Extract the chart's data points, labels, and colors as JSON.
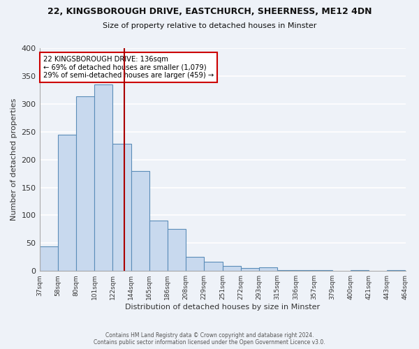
{
  "title_line1": "22, KINGSBOROUGH DRIVE, EASTCHURCH, SHEERNESS, ME12 4DN",
  "title_line2": "Size of property relative to detached houses in Minster",
  "xlabel": "Distribution of detached houses by size in Minster",
  "ylabel": "Number of detached properties",
  "bar_labels": [
    "37sqm",
    "58sqm",
    "80sqm",
    "101sqm",
    "122sqm",
    "144sqm",
    "165sqm",
    "186sqm",
    "208sqm",
    "229sqm",
    "251sqm",
    "272sqm",
    "293sqm",
    "315sqm",
    "336sqm",
    "357sqm",
    "379sqm",
    "400sqm",
    "421sqm",
    "443sqm",
    "464sqm"
  ],
  "bar_values": [
    44,
    245,
    313,
    335,
    228,
    180,
    90,
    75,
    25,
    17,
    9,
    5,
    6,
    1,
    2,
    1,
    0,
    1,
    0,
    2
  ],
  "ylim": [
    0,
    400
  ],
  "yticks": [
    0,
    50,
    100,
    150,
    200,
    250,
    300,
    350,
    400
  ],
  "bar_color": "#c8d9ee",
  "bar_edge_color": "#5b8db8",
  "annotation_text_line1": "22 KINGSBOROUGH DRIVE: 136sqm",
  "annotation_text_line2": "← 69% of detached houses are smaller (1,079)",
  "annotation_text_line3": "29% of semi-detached houses are larger (459) →",
  "vline_sqm": 136,
  "vline_color": "#aa0000",
  "footer_line1": "Contains HM Land Registry data © Crown copyright and database right 2024.",
  "footer_line2": "Contains public sector information licensed under the Open Government Licence v3.0.",
  "bg_color": "#eef2f8",
  "annotation_box_edgecolor": "#cc0000",
  "bin_edges": [
    37,
    58,
    80,
    101,
    122,
    144,
    165,
    186,
    208,
    229,
    251,
    272,
    293,
    315,
    336,
    357,
    379,
    400,
    421,
    443,
    464
  ]
}
